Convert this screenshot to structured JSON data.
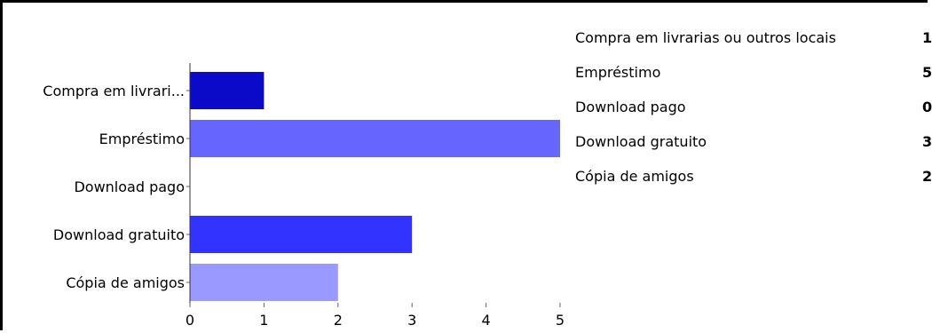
{
  "chart_data": {
    "type": "bar",
    "orientation": "horizontal",
    "categories": [
      "Compra em livrari...",
      "Empréstimo",
      "Download pago",
      "Download gratuito",
      "Cópia de amigos"
    ],
    "values": [
      1,
      5,
      0,
      3,
      2
    ],
    "colors": [
      "#0a0ac8",
      "#6666ff",
      "#4d4dff",
      "#3333ff",
      "#9999ff"
    ],
    "xlim": [
      0,
      5
    ],
    "xticks": [
      "0",
      "1",
      "2",
      "3",
      "4",
      "5"
    ],
    "title": "",
    "xlabel": "",
    "ylabel": ""
  },
  "legend_table": {
    "rows": [
      {
        "label": "Compra em livrarias ou outros locais",
        "value": "1"
      },
      {
        "label": "Empréstimo",
        "value": "5"
      },
      {
        "label": "Download pago",
        "value": "0"
      },
      {
        "label": "Download gratuito",
        "value": "3"
      },
      {
        "label": "Cópia de amigos",
        "value": "2"
      }
    ]
  }
}
